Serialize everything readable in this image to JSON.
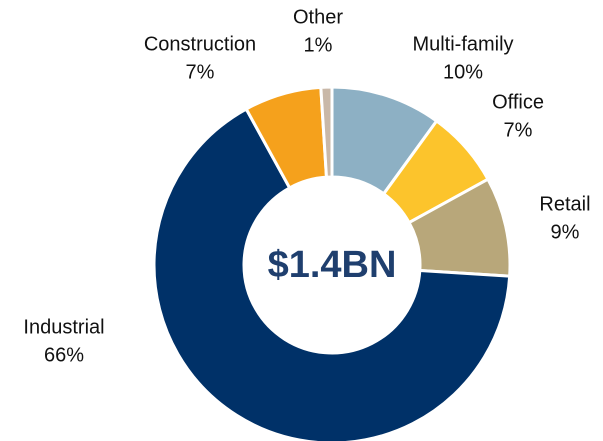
{
  "chart_data": {
    "type": "pie",
    "center_label": "$1.4BN",
    "categories": [
      "Multi-family",
      "Office",
      "Retail",
      "Industrial",
      "Construction",
      "Other"
    ],
    "values": [
      10,
      7,
      9,
      66,
      7,
      1
    ],
    "value_labels": [
      "10%",
      "7%",
      "9%",
      "66%",
      "7%",
      "1%"
    ],
    "colors": [
      "#8db0c4",
      "#fcc42c",
      "#b8a77a",
      "#003168",
      "#f5a11c",
      "#c9b8a8"
    ]
  }
}
